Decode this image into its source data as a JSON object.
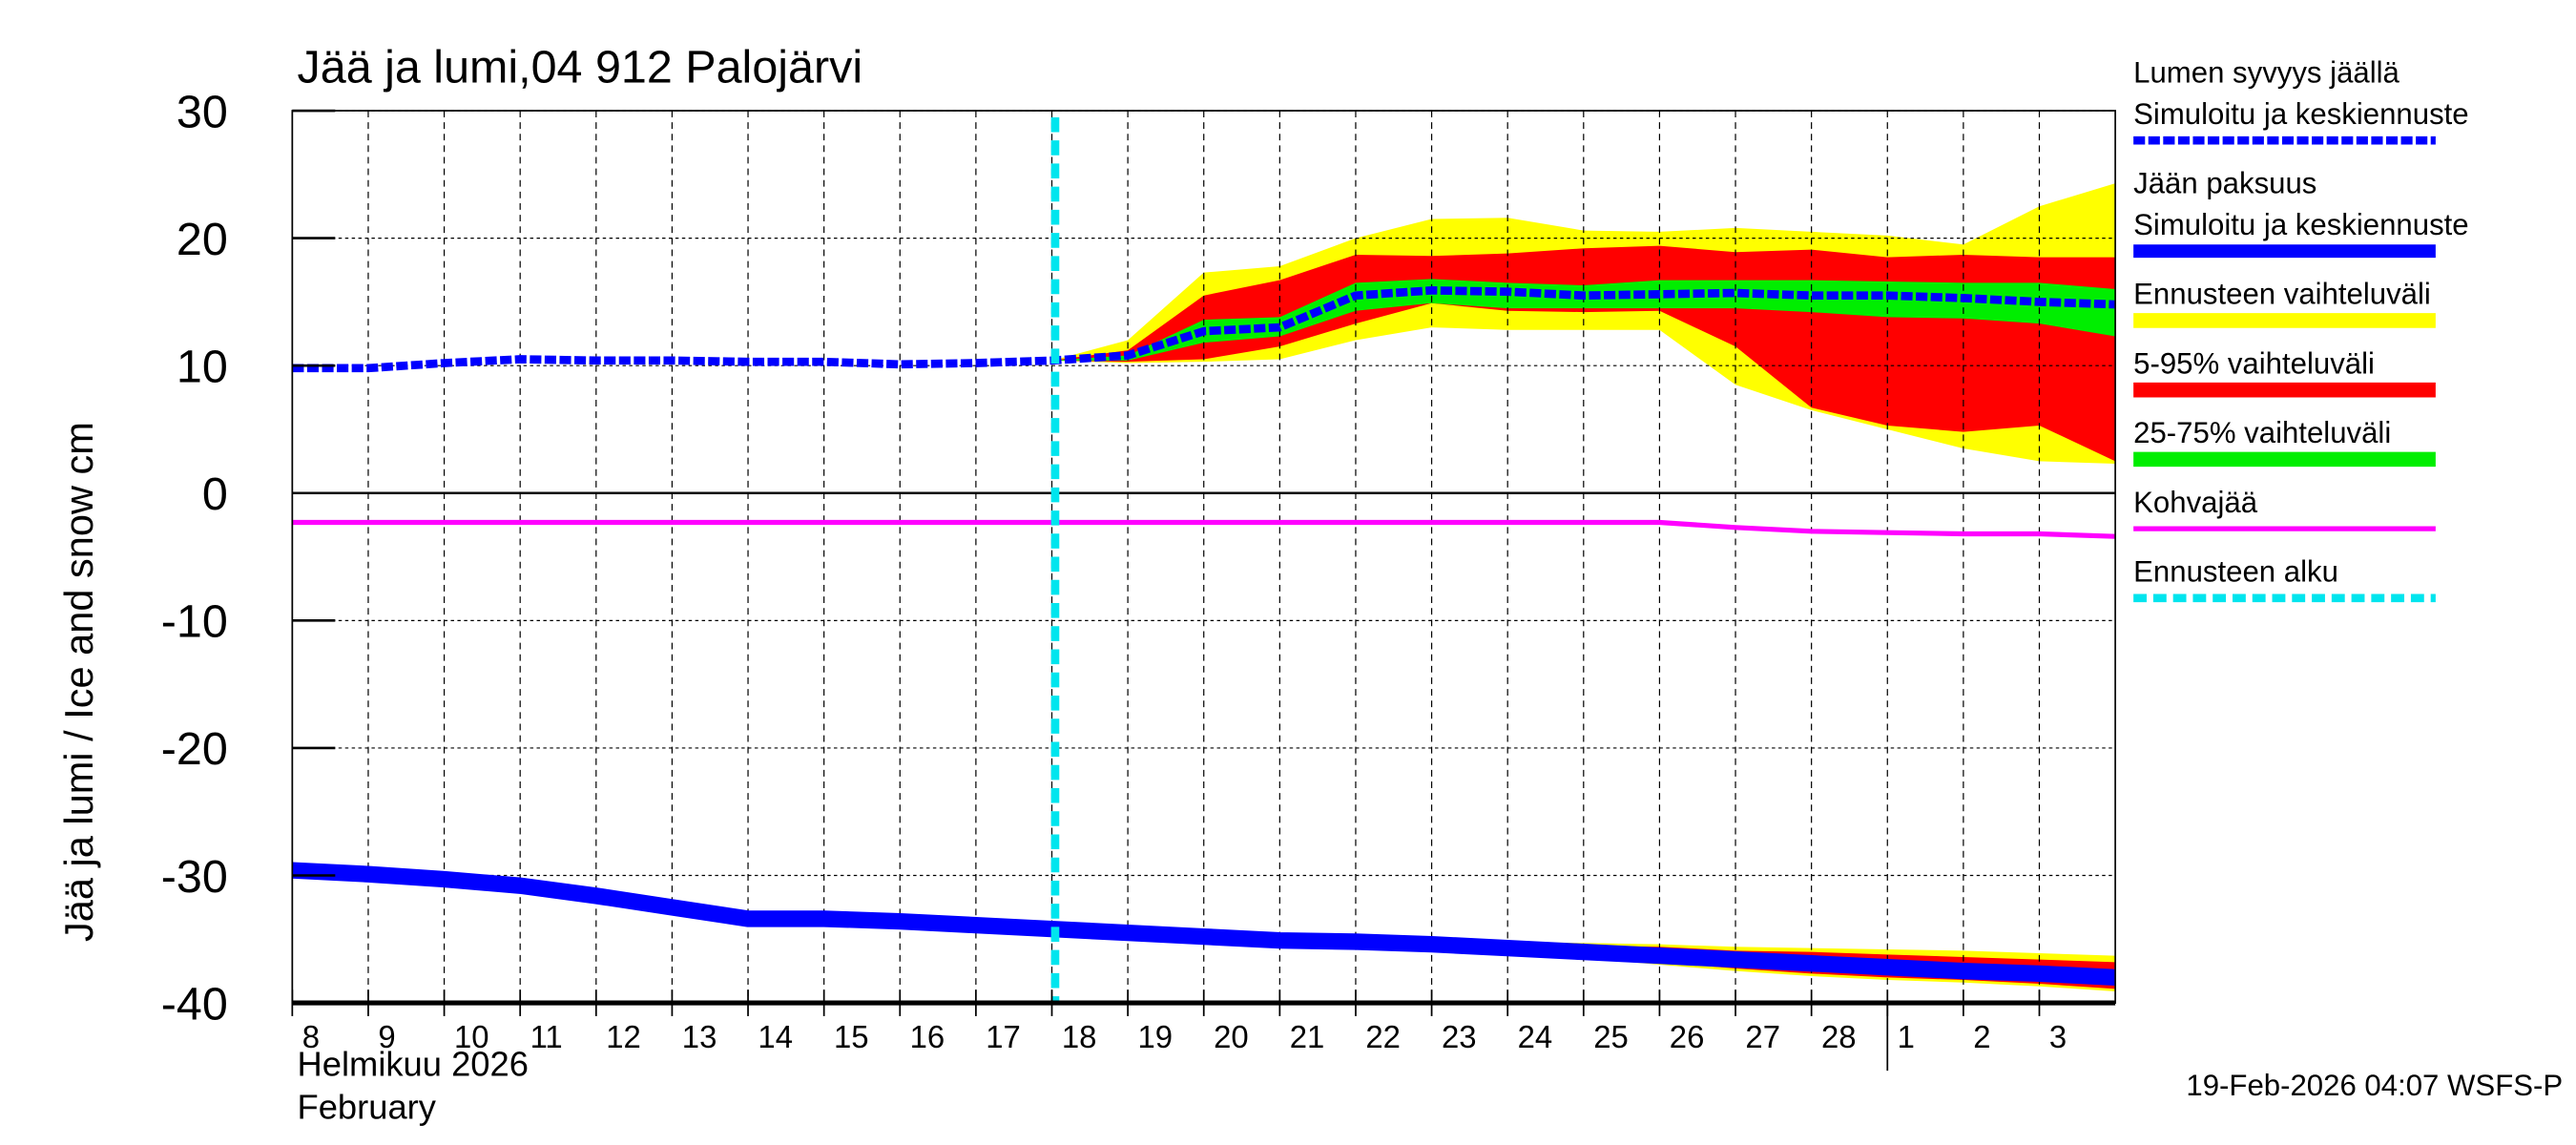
{
  "chart_data": {
    "type": "area",
    "title": "Jää ja lumi,04 912 Palojärvi",
    "ylabel": "Jää ja lumi / Ice and snow    cm",
    "ylim": [
      -40,
      30
    ],
    "yticks": [
      30,
      20,
      10,
      0,
      -10,
      -20,
      -30,
      -40
    ],
    "xlim": [
      "2026-02-08",
      "2026-03-04"
    ],
    "xtick_labels": [
      "8",
      "9",
      "10",
      "11",
      "12",
      "13",
      "14",
      "15",
      "16",
      "17",
      "18",
      "19",
      "20",
      "21",
      "22",
      "23",
      "24",
      "25",
      "26",
      "27",
      "28",
      "1",
      "2",
      "3"
    ],
    "month_label_fi": "Helmikuu  2026",
    "month_label_en": "February",
    "grid": true,
    "forecast_start": "2026-02-18",
    "footer": "19-Feb-2026 04:07 WSFS-P",
    "colors": {
      "snow": "#0000ff",
      "ice": "#0000ff",
      "range": "#ffff00",
      "p5_95": "#ff0000",
      "p25_75": "#00ee00",
      "slush": "#ff00ff",
      "forecast": "#00e5ee"
    },
    "legend": [
      {
        "label1": "Lumen syvyys jäällä",
        "label2": "Simuloitu ja keskiennuste",
        "style": "dashed-blue"
      },
      {
        "label1": "Jään paksuus",
        "label2": "Simuloitu ja keskiennuste",
        "style": "solid-blue"
      },
      {
        "label1": "Ennusteen vaihteluväli",
        "style": "yellow"
      },
      {
        "label1": "5-95% vaihteluväli",
        "style": "red"
      },
      {
        "label1": "25-75% vaihteluväli",
        "style": "green"
      },
      {
        "label1": "Kohvajää",
        "style": "magenta"
      },
      {
        "label1": "Ennusteen alku",
        "style": "dashed-cyan"
      }
    ],
    "dates": [
      "2026-02-08",
      "2026-02-09",
      "2026-02-10",
      "2026-02-11",
      "2026-02-12",
      "2026-02-13",
      "2026-02-14",
      "2026-02-15",
      "2026-02-16",
      "2026-02-17",
      "2026-02-18",
      "2026-02-19",
      "2026-02-20",
      "2026-02-21",
      "2026-02-22",
      "2026-02-23",
      "2026-02-24",
      "2026-02-25",
      "2026-02-26",
      "2026-02-27",
      "2026-02-28",
      "2026-03-01",
      "2026-03-02",
      "2026-03-03",
      "2026-03-04"
    ],
    "snow_depth": [
      9.8,
      9.8,
      10.2,
      10.5,
      10.4,
      10.4,
      10.3,
      10.3,
      10.1,
      10.2,
      10.4,
      10.8,
      12.7,
      13.0,
      15.5,
      15.9,
      15.8,
      15.5,
      15.6,
      15.7,
      15.5,
      15.5,
      15.3,
      15.0,
      14.8
    ],
    "ice_thickness": [
      -29.6,
      -29.9,
      -30.3,
      -30.8,
      -31.6,
      -32.5,
      -33.4,
      -33.4,
      -33.6,
      -33.9,
      -34.2,
      -34.5,
      -34.8,
      -35.1,
      -35.2,
      -35.4,
      -35.7,
      -36.0,
      -36.3,
      -36.6,
      -36.9,
      -37.2,
      -37.5,
      -37.7,
      -38.0
    ],
    "slush_ice": [
      -2.3,
      -2.3,
      -2.3,
      -2.3,
      -2.3,
      -2.3,
      -2.3,
      -2.3,
      -2.3,
      -2.3,
      -2.3,
      -2.3,
      -2.3,
      -2.3,
      -2.3,
      -2.3,
      -2.3,
      -2.3,
      -2.3,
      -2.7,
      -3.0,
      -3.1,
      -3.2,
      -3.2,
      -3.4
    ],
    "snow_bands_dates": [
      "2026-02-18",
      "2026-02-19",
      "2026-02-20",
      "2026-02-21",
      "2026-02-22",
      "2026-02-23",
      "2026-02-24",
      "2026-02-25",
      "2026-02-26",
      "2026-02-27",
      "2026-02-28",
      "2026-03-01",
      "2026-03-02",
      "2026-03-03",
      "2026-03-04"
    ],
    "snow_range_max": [
      10.4,
      12,
      17.3,
      17.8,
      20,
      21.5,
      21.6,
      20.6,
      20.5,
      20.8,
      20.5,
      20.2,
      19.5,
      22.5,
      24.3
    ],
    "snow_range_min": [
      10.4,
      10.2,
      10.3,
      10.5,
      12,
      13,
      12.8,
      12.8,
      12.8,
      8.5,
      6.5,
      5,
      3.5,
      2.5,
      2.3
    ],
    "snow_p95": [
      10.4,
      11.2,
      15.5,
      16.7,
      18.7,
      18.6,
      18.8,
      19.2,
      19.4,
      18.9,
      19.1,
      18.5,
      18.7,
      18.5,
      18.5
    ],
    "snow_p5": [
      10.4,
      10.3,
      10.5,
      11.5,
      13.3,
      14.9,
      14.3,
      14.2,
      14.3,
      11.5,
      6.7,
      5.3,
      4.8,
      5.3,
      2.5
    ],
    "snow_p75": [
      10.4,
      10.8,
      13.6,
      13.8,
      16.5,
      16.8,
      16.5,
      16.3,
      16.7,
      16.7,
      16.7,
      16.6,
      16.5,
      16.5,
      16.0
    ],
    "snow_p25": [
      10.4,
      10.4,
      11.8,
      12.3,
      14.3,
      14.9,
      14.5,
      14.5,
      14.5,
      14.5,
      14.2,
      13.8,
      13.7,
      13.3,
      12.3
    ],
    "ice_bands_dates": [
      "2026-02-20",
      "2026-02-21",
      "2026-02-22",
      "2026-02-23",
      "2026-02-24",
      "2026-02-25",
      "2026-02-26",
      "2026-02-27",
      "2026-02-28",
      "2026-03-01",
      "2026-03-02",
      "2026-03-03",
      "2026-03-04"
    ],
    "ice_range_max": [
      -34.7,
      -34.9,
      -35.0,
      -35.1,
      -35.2,
      -35.3,
      -35.4,
      -35.6,
      -35.7,
      -35.8,
      -35.9,
      -36.1,
      -36.3
    ],
    "ice_range_min": [
      -34.9,
      -35.3,
      -35.5,
      -35.6,
      -35.9,
      -36.5,
      -37.0,
      -37.5,
      -37.9,
      -38.2,
      -38.4,
      -38.7,
      -39.1
    ],
    "ice_p95": [
      -34.8,
      -35.0,
      -35.1,
      -35.2,
      -35.3,
      -35.5,
      -35.6,
      -35.9,
      -36.0,
      -36.2,
      -36.4,
      -36.6,
      -36.8
    ],
    "ice_p5": [
      -34.9,
      -35.2,
      -35.4,
      -35.5,
      -35.8,
      -36.3,
      -36.8,
      -37.3,
      -37.7,
      -38.0,
      -38.2,
      -38.5,
      -38.9
    ]
  }
}
